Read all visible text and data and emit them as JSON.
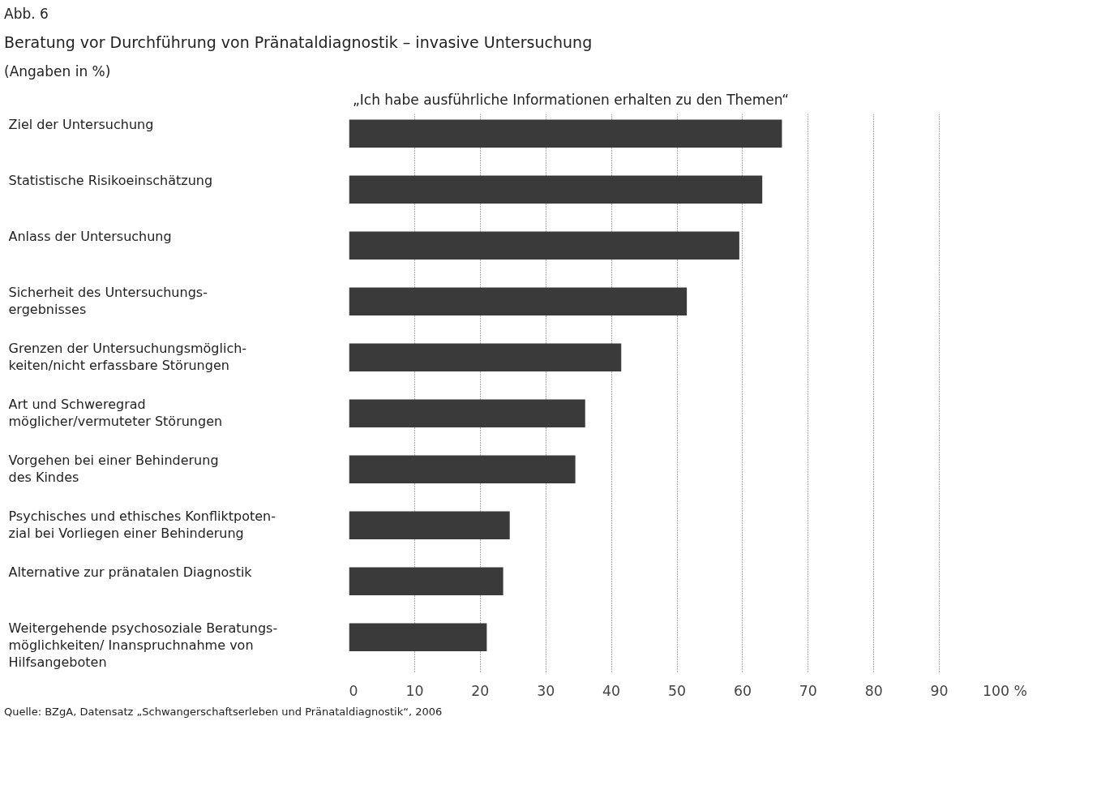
{
  "chart_data": {
    "type": "bar",
    "orientation": "horizontal",
    "title": "Beratung vor Durchführung von Pränataldiagnostik – invasive Untersuchung",
    "subtitle": "(Angaben in %)",
    "categories": [
      "Ziel der Untersuchung",
      "Statistische Risikoeinschätzung",
      "Anlass der Untersuchung",
      "Sicherheit des Untersuchungs-\nergebnisses",
      "Grenzen der Untersuchungsmöglich-\nkeiten/nicht erfassbare Störungen",
      "Art und Schweregrad\nmöglicher/vermuteter Störungen",
      "Vorgehen bei einer Behinderung\ndes Kindes",
      "Psychisches und ethisches  Konfliktpoten-\nzial bei Vorliegen einer Behinderung",
      "Alternative zur pränatalen Diagnostik",
      "Weitergehende psychosoziale Beratungs-\nmöglichkeiten/ Inanspruchnahme von\nHilfsangeboten"
    ],
    "values": [
      66,
      63,
      59.5,
      51.5,
      41.5,
      36,
      34.5,
      24.5,
      23.5,
      21
    ],
    "color": "#3a3a3a",
    "xlim": [
      0,
      100
    ],
    "xticks": [
      0,
      10,
      20,
      30,
      40,
      50,
      60,
      70,
      80,
      90,
      {
        "value": 100,
        "label": "100 %"
      }
    ],
    "grid": "x",
    "annotations": [
      "Abb. 6",
      "„Ich habe ausführliche Informationen erhalten zu den Themen“",
      "Quelle: BZgA, Datensatz „Schwangerschaftserleben und Pränataldiagnostik“, 2006"
    ]
  }
}
